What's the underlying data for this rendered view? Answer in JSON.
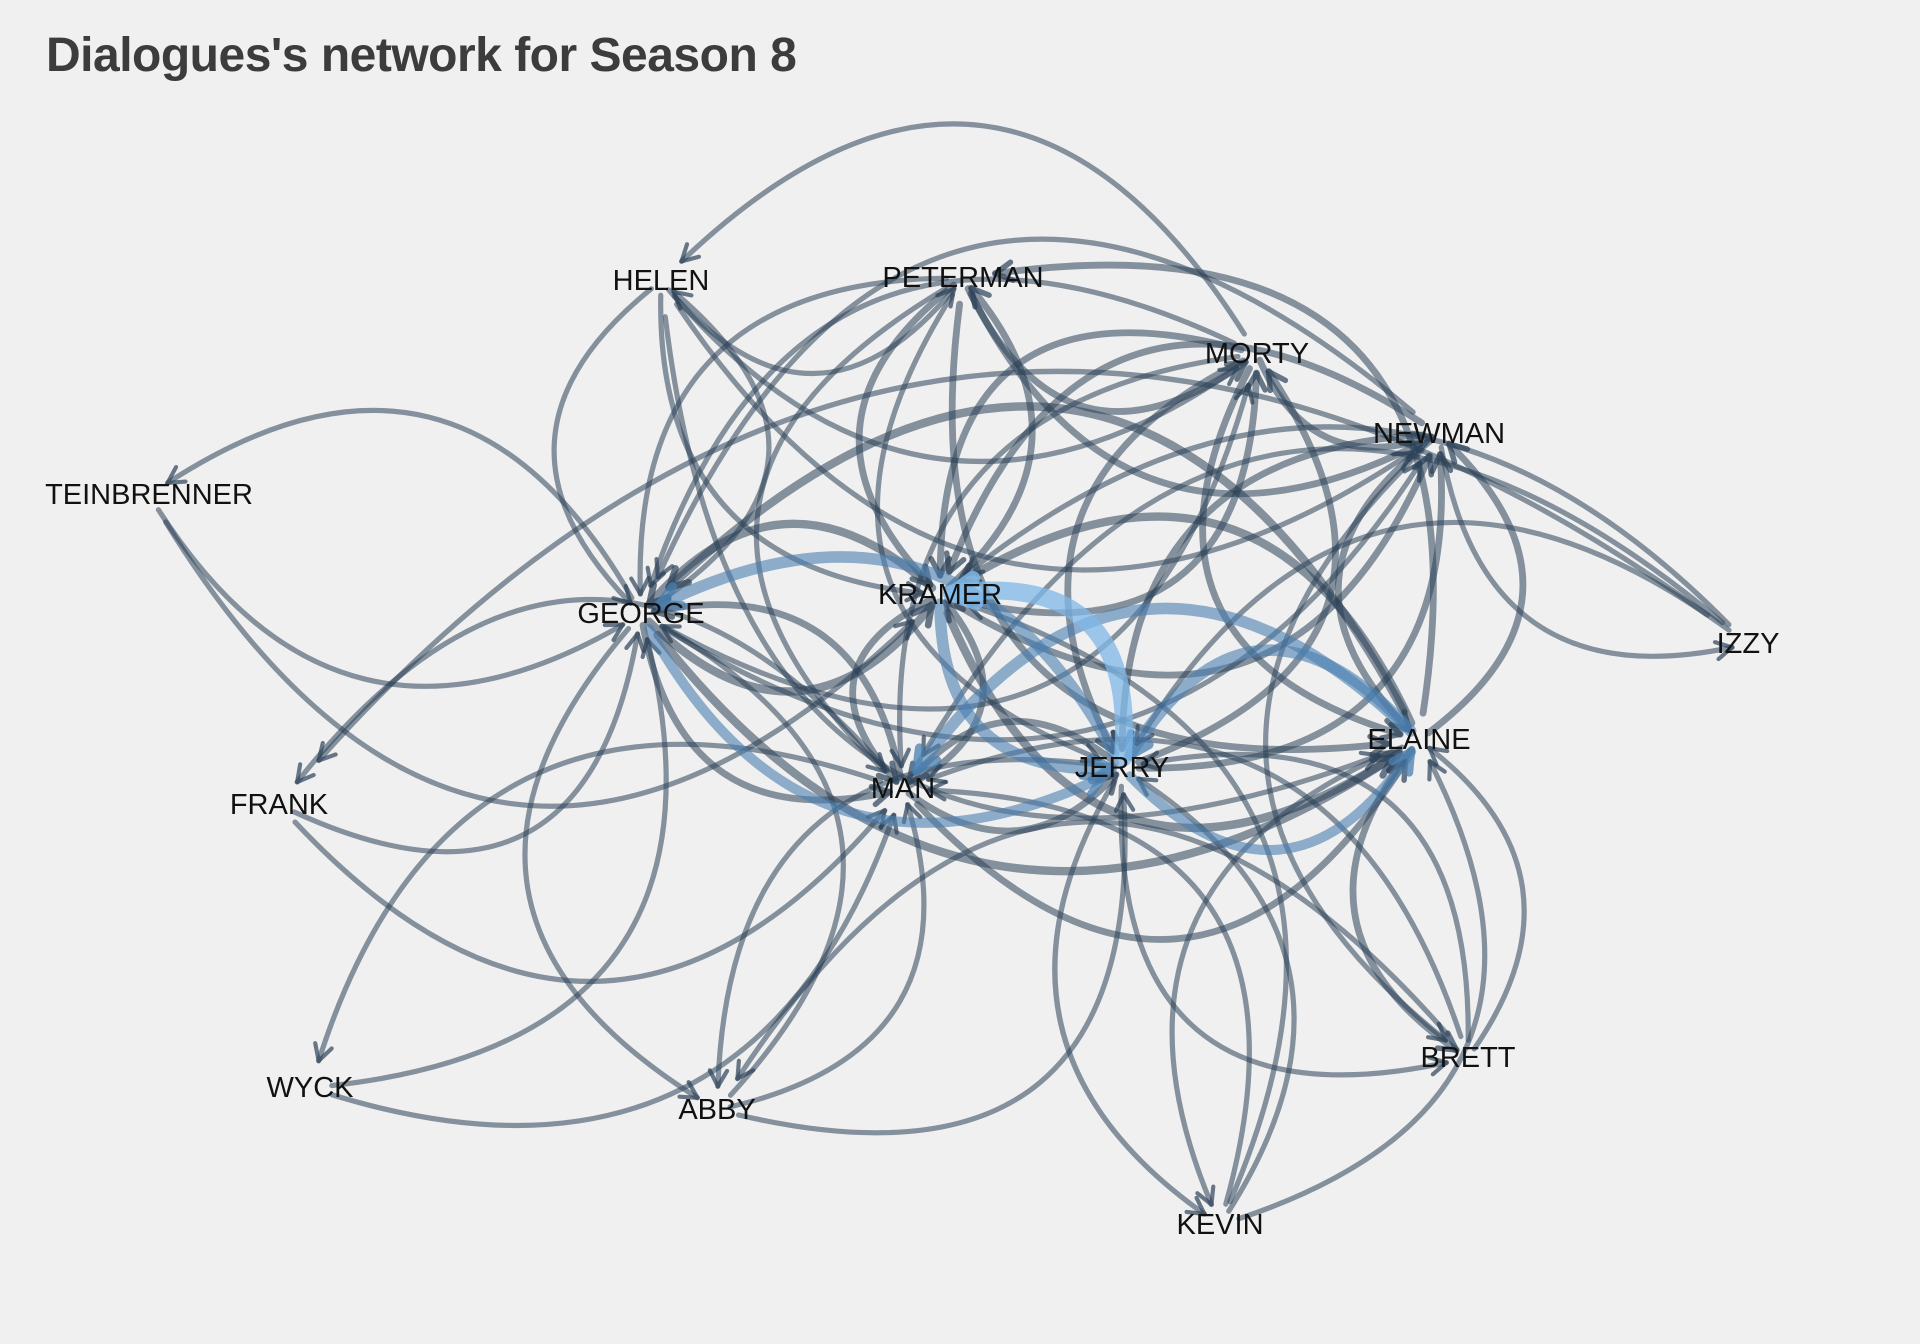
{
  "title": "Dialogues's network for Season 8",
  "colors": {
    "background": "#f0f0f0",
    "edge": "#2c4258",
    "edge_highlight": "#4a7fb0",
    "edge_top": "#7fb8e8",
    "label": "#111111",
    "title": "#3c3c3c"
  },
  "nodes": [
    {
      "id": "HELEN",
      "label": "HELEN"
    },
    {
      "id": "PETERMAN",
      "label": "PETERMAN"
    },
    {
      "id": "MORTY",
      "label": "MORTY"
    },
    {
      "id": "NEWMAN",
      "label": "NEWMAN"
    },
    {
      "id": "TEINBRENNER",
      "label": "TEINBRENNER"
    },
    {
      "id": "GEORGE",
      "label": "GEORGE"
    },
    {
      "id": "KRAMER",
      "label": "KRAMER"
    },
    {
      "id": "IZZY",
      "label": "IZZY"
    },
    {
      "id": "ELAINE",
      "label": "ELAINE"
    },
    {
      "id": "JERRY",
      "label": "JERRY"
    },
    {
      "id": "MAN",
      "label": "MAN"
    },
    {
      "id": "FRANK",
      "label": "FRANK"
    },
    {
      "id": "BRETT",
      "label": "BRETT"
    },
    {
      "id": "WYCK",
      "label": "WYCK"
    },
    {
      "id": "ABBY",
      "label": "ABBY"
    },
    {
      "id": "KEVIN",
      "label": "KEVIN"
    }
  ],
  "edges": [
    {
      "from": "HELEN",
      "to": "MORTY",
      "weight": 2
    },
    {
      "from": "HELEN",
      "to": "PETERMAN",
      "weight": 2
    },
    {
      "from": "HELEN",
      "to": "NEWMAN",
      "weight": 2
    },
    {
      "from": "HELEN",
      "to": "ELAINE",
      "weight": 2
    },
    {
      "from": "HELEN",
      "to": "GEORGE",
      "weight": 2
    },
    {
      "from": "HELEN",
      "to": "KRAMER",
      "weight": 2
    },
    {
      "from": "PETERMAN",
      "to": "MORTY",
      "weight": 3
    },
    {
      "from": "PETERMAN",
      "to": "NEWMAN",
      "weight": 3
    },
    {
      "from": "PETERMAN",
      "to": "ELAINE",
      "weight": 3
    },
    {
      "from": "PETERMAN",
      "to": "JERRY",
      "weight": 2
    },
    {
      "from": "PETERMAN",
      "to": "GEORGE",
      "weight": 2
    },
    {
      "from": "PETERMAN",
      "to": "KRAMER",
      "weight": 3
    },
    {
      "from": "PETERMAN",
      "to": "MAN",
      "weight": 2
    },
    {
      "from": "MORTY",
      "to": "NEWMAN",
      "weight": 3
    },
    {
      "from": "MORTY",
      "to": "ELAINE",
      "weight": 3
    },
    {
      "from": "MORTY",
      "to": "JERRY",
      "weight": 3
    },
    {
      "from": "MORTY",
      "to": "GEORGE",
      "weight": 2
    },
    {
      "from": "MORTY",
      "to": "KRAMER",
      "weight": 3
    },
    {
      "from": "MORTY",
      "to": "MAN",
      "weight": 2
    },
    {
      "from": "MORTY",
      "to": "HELEN",
      "weight": 2
    },
    {
      "from": "NEWMAN",
      "to": "IZZY",
      "weight": 2
    },
    {
      "from": "NEWMAN",
      "to": "ELAINE",
      "weight": 3
    },
    {
      "from": "NEWMAN",
      "to": "JERRY",
      "weight": 3
    },
    {
      "from": "NEWMAN",
      "to": "KRAMER",
      "weight": 3
    },
    {
      "from": "NEWMAN",
      "to": "GEORGE",
      "weight": 2
    },
    {
      "from": "NEWMAN",
      "to": "BRETT",
      "weight": 2
    },
    {
      "from": "TEINBRENNER",
      "to": "GEORGE",
      "weight": 2
    },
    {
      "from": "TEINBRENNER",
      "to": "KRAMER",
      "weight": 2
    },
    {
      "from": "GEORGE",
      "to": "TEINBRENNER",
      "weight": 2
    },
    {
      "from": "GEORGE",
      "to": "HELEN",
      "weight": 2
    },
    {
      "from": "GEORGE",
      "to": "KRAMER",
      "weight": 4
    },
    {
      "from": "GEORGE",
      "to": "ELAINE",
      "weight": 4
    },
    {
      "from": "GEORGE",
      "to": "JERRY",
      "weight": 5
    },
    {
      "from": "GEORGE",
      "to": "MAN",
      "weight": 3
    },
    {
      "from": "GEORGE",
      "to": "ABBY",
      "weight": 2
    },
    {
      "from": "GEORGE",
      "to": "NEWMAN",
      "weight": 2
    },
    {
      "from": "GEORGE",
      "to": "MORTY",
      "weight": 2
    },
    {
      "from": "KRAMER",
      "to": "JERRY",
      "weight": 6
    },
    {
      "from": "KRAMER",
      "to": "ELAINE",
      "weight": 4
    },
    {
      "from": "KRAMER",
      "to": "GEORGE",
      "weight": 4
    },
    {
      "from": "KRAMER",
      "to": "MAN",
      "weight": 3
    },
    {
      "from": "KRAMER",
      "to": "NEWMAN",
      "weight": 3
    },
    {
      "from": "KRAMER",
      "to": "PETERMAN",
      "weight": 3
    },
    {
      "from": "KRAMER",
      "to": "MORTY",
      "weight": 3
    },
    {
      "from": "IZZY",
      "to": "JERRY",
      "weight": 2
    },
    {
      "from": "IZZY",
      "to": "KRAMER",
      "weight": 2
    },
    {
      "from": "IZZY",
      "to": "MAN",
      "weight": 2
    },
    {
      "from": "ELAINE",
      "to": "JERRY",
      "weight": 6
    },
    {
      "from": "ELAINE",
      "to": "GEORGE",
      "weight": 4
    },
    {
      "from": "ELAINE",
      "to": "KRAMER",
      "weight": 4
    },
    {
      "from": "ELAINE",
      "to": "MAN",
      "weight": 6
    },
    {
      "from": "ELAINE",
      "to": "BRETT",
      "weight": 3
    },
    {
      "from": "ELAINE",
      "to": "PETERMAN",
      "weight": 3
    },
    {
      "from": "ELAINE",
      "to": "KEVIN",
      "weight": 2
    },
    {
      "from": "ELAINE",
      "to": "NEWMAN",
      "weight": 3
    },
    {
      "from": "JERRY",
      "to": "KRAMER",
      "weight": 10
    },
    {
      "from": "JERRY",
      "to": "GEORGE",
      "weight": 6
    },
    {
      "from": "JERRY",
      "to": "ELAINE",
      "weight": 5
    },
    {
      "from": "JERRY",
      "to": "MAN",
      "weight": 3
    },
    {
      "from": "JERRY",
      "to": "MORTY",
      "weight": 3
    },
    {
      "from": "JERRY",
      "to": "NEWMAN",
      "weight": 3
    },
    {
      "from": "JERRY",
      "to": "BRETT",
      "weight": 2
    },
    {
      "from": "JERRY",
      "to": "ABBY",
      "weight": 2
    },
    {
      "from": "JERRY",
      "to": "KEVIN",
      "weight": 2
    },
    {
      "from": "MAN",
      "to": "JERRY",
      "weight": 3
    },
    {
      "from": "MAN",
      "to": "KRAMER",
      "weight": 3
    },
    {
      "from": "MAN",
      "to": "GEORGE",
      "weight": 3
    },
    {
      "from": "MAN",
      "to": "ELAINE",
      "weight": 3
    },
    {
      "from": "MAN",
      "to": "FRANK",
      "weight": 2
    },
    {
      "from": "MAN",
      "to": "WYCK",
      "weight": 2
    },
    {
      "from": "FRANK",
      "to": "GEORGE",
      "weight": 2
    },
    {
      "from": "FRANK",
      "to": "MAN",
      "weight": 2
    },
    {
      "from": "BRETT",
      "to": "ELAINE",
      "weight": 2
    },
    {
      "from": "BRETT",
      "to": "JERRY",
      "weight": 2
    },
    {
      "from": "BRETT",
      "to": "MAN",
      "weight": 2
    },
    {
      "from": "BRETT",
      "to": "ABBY",
      "weight": 2
    },
    {
      "from": "WYCK",
      "to": "GEORGE",
      "weight": 2
    },
    {
      "from": "WYCK",
      "to": "MAN",
      "weight": 2
    },
    {
      "from": "ABBY",
      "to": "GEORGE",
      "weight": 2
    },
    {
      "from": "ABBY",
      "to": "MAN",
      "weight": 2
    },
    {
      "from": "ABBY",
      "to": "JERRY",
      "weight": 2
    },
    {
      "from": "KEVIN",
      "to": "ELAINE",
      "weight": 2
    },
    {
      "from": "KEVIN",
      "to": "JERRY",
      "weight": 2
    },
    {
      "from": "KEVIN",
      "to": "MAN",
      "weight": 2
    },
    {
      "from": "KEVIN",
      "to": "KRAMER",
      "weight": 2
    },
    {
      "from": "IZZY",
      "to": "FRANK",
      "weight": 2
    }
  ]
}
